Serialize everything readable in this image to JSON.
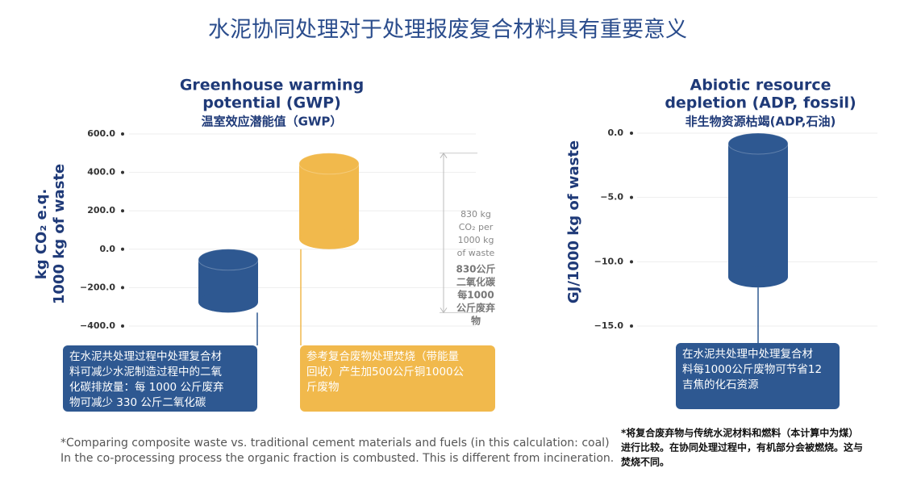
{
  "title": "水泥协同处理对于处理报废复合材料具有重要意义",
  "chart_data": [
    {
      "type": "cylinder",
      "title": [
        "Greenhouse warming",
        "potential (GWP)"
      ],
      "subtitle": "温室效应潜能值（GWP）",
      "ylabel": [
        "kg CO₂ e.q.",
        "1000 kg of waste"
      ],
      "ylim": [
        -400,
        600
      ],
      "yticks": [
        {
          "value": 600,
          "label": "600.0"
        },
        {
          "value": 400,
          "label": "400.0"
        },
        {
          "value": 200,
          "label": "200.0"
        },
        {
          "value": 0,
          "label": "0.0"
        },
        {
          "value": -200,
          "label": "−200.0"
        },
        {
          "value": -400,
          "label": "−400.0"
        }
      ],
      "grid": true,
      "values": [
        -330,
        500
      ],
      "colors": [
        "#2e5891",
        "#f1b94c"
      ],
      "annotations": [
        [
          "在水泥共处理过程中处理复合材",
          "料可减少水泥制造过程中的二氧",
          "化碳排放量：每 1000 公斤废弃",
          "物可减少 330 公斤二氧化碳"
        ],
        [
          "参考复合废物处理焚烧（带能量",
          "回收）产生加500公斤铜1000公",
          "斤废物"
        ]
      ],
      "bracket_label": [
        "830 kg",
        "CO₂ per",
        "1000 kg",
        "of waste"
      ],
      "bracket_label_zh": [
        "830公斤",
        "二氧化碳",
        "每1000",
        "公斤废弃",
        "物"
      ]
    },
    {
      "type": "cylinder",
      "title": [
        "Abiotic resource",
        "depletion (ADP, fossil)"
      ],
      "subtitle": "非生物资源枯竭(ADP,石油)",
      "ylabel": [
        "GJ/1000 kg of waste"
      ],
      "ylim": [
        -15,
        0
      ],
      "yticks": [
        {
          "value": 0,
          "label": "0.0"
        },
        {
          "value": -5,
          "label": "−5.0"
        },
        {
          "value": -10,
          "label": "−10.0"
        },
        {
          "value": -15,
          "label": "−15.0"
        }
      ],
      "grid": true,
      "values": [
        -12
      ],
      "colors": [
        "#2e5891"
      ],
      "annotations": [
        [
          "在水泥共处理中处理复合材",
          "料每1000公斤废物可节省12",
          "吉焦的化石资源"
        ]
      ]
    }
  ],
  "footnotes": {
    "en": [
      "*Comparing composite waste vs. traditional cement materials and fuels (in this calculation: coal)",
      "In the co-processing process the organic fraction is combusted. This is different from incineration."
    ],
    "zh": [
      "*将复合废弃物与传统水泥材料和燃料（本计算中为煤）",
      "进行比较。在协同处理过程中，有机部分会被燃烧。这与",
      "焚烧不同。"
    ]
  }
}
